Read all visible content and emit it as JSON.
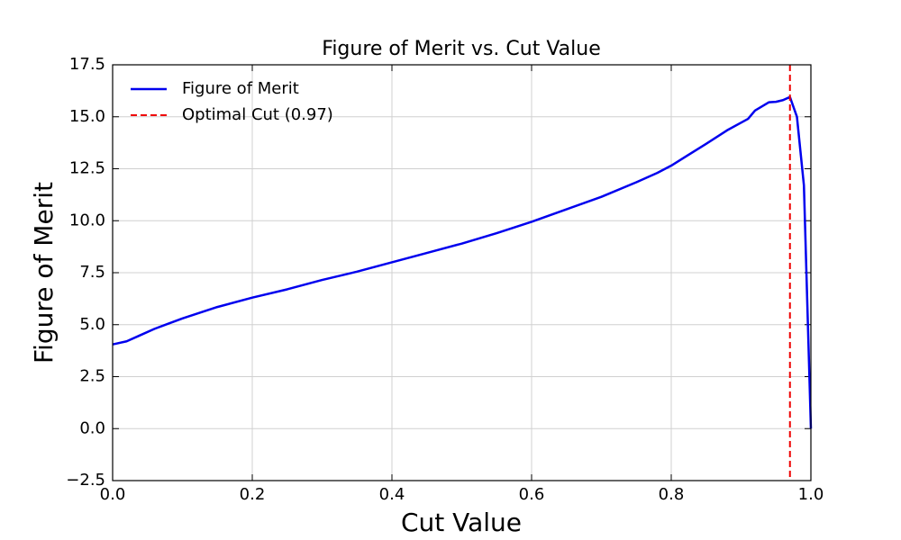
{
  "chart_data": {
    "type": "line",
    "title": "Figure of Merit vs. Cut Value",
    "xlabel": "Cut Value",
    "ylabel": "Figure of Merit",
    "x": [
      0,
      0.02,
      0.04,
      0.06,
      0.08,
      0.1,
      0.15,
      0.2,
      0.25,
      0.3,
      0.35,
      0.4,
      0.45,
      0.5,
      0.55,
      0.6,
      0.65,
      0.7,
      0.75,
      0.78,
      0.8,
      0.85,
      0.88,
      0.91,
      0.92,
      0.94,
      0.95,
      0.96,
      0.97,
      0.98,
      0.99,
      1.0
    ],
    "series": [
      {
        "name": "Figure of Merit",
        "color": "#0000ee",
        "values": [
          4.05,
          4.2,
          4.5,
          4.8,
          5.05,
          5.3,
          5.85,
          6.3,
          6.7,
          7.15,
          7.55,
          8.0,
          8.45,
          8.9,
          9.4,
          9.95,
          10.55,
          11.15,
          11.85,
          12.3,
          12.65,
          13.7,
          14.35,
          14.9,
          15.3,
          15.7,
          15.72,
          15.8,
          15.95,
          15.0,
          11.7,
          0.0
        ]
      }
    ],
    "vline": {
      "name": "Optimal Cut (0.97)",
      "x": 0.97,
      "color": "#ee0000"
    },
    "xlim": [
      0,
      1
    ],
    "ylim": [
      -2.5,
      17.5
    ],
    "xticks": [
      {
        "value": 0,
        "label": "0.0"
      },
      0.2,
      0.4,
      0.6,
      0.8,
      {
        "value": 1,
        "label": "1.0"
      }
    ],
    "yticks": [
      {
        "value": -2.5,
        "label": "−2.5"
      },
      {
        "value": 0,
        "label": "0.0"
      },
      2.5,
      {
        "value": 5,
        "label": "5.0"
      },
      7.5,
      {
        "value": 10,
        "label": "10.0"
      },
      12.5,
      {
        "value": 15,
        "label": "15.0"
      },
      17.5
    ],
    "grid": true,
    "legend": "upper left"
  }
}
